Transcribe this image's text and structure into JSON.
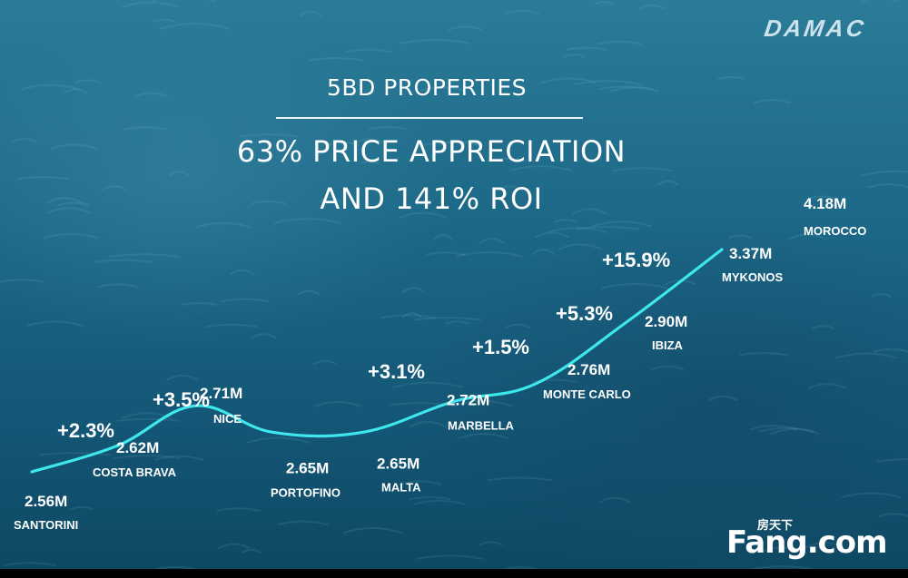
{
  "logo": "DAMAC",
  "watermark": {
    "small": "房天下",
    "big": "Fang.com"
  },
  "chart_data": {
    "type": "line",
    "subtitle": "5BD PROPERTIES",
    "title_line1": "63% PRICE APPRECIATION",
    "title_line2": "AND 141% ROI",
    "color": "#3ee6ee",
    "points": [
      {
        "location": "SANTORINI",
        "value": 2.56,
        "value_label": "2.56M"
      },
      {
        "location": "COSTA BRAVA",
        "value": 2.62,
        "value_label": "2.62M"
      },
      {
        "location": "NICE",
        "value": 2.71,
        "value_label": "2.71M"
      },
      {
        "location": "PORTOFINO",
        "value": 2.65,
        "value_label": "2.65M"
      },
      {
        "location": "MALTA",
        "value": 2.65,
        "value_label": "2.65M"
      },
      {
        "location": "MARBELLA",
        "value": 2.72,
        "value_label": "2.72M"
      },
      {
        "location": "MONTE CARLO",
        "value": 2.76,
        "value_label": "2.76M"
      },
      {
        "location": "IBIZA",
        "value": 2.9,
        "value_label": "2.90M"
      },
      {
        "location": "MYKONOS",
        "value": 3.37,
        "value_label": "3.37M"
      },
      {
        "location": "MOROCCO",
        "value": 4.18,
        "value_label": "4.18M"
      }
    ],
    "growth_labels": [
      "+2.3%",
      "+3.5%",
      "+3.1%",
      "+1.5%",
      "+5.3%",
      "+15.9%"
    ]
  }
}
